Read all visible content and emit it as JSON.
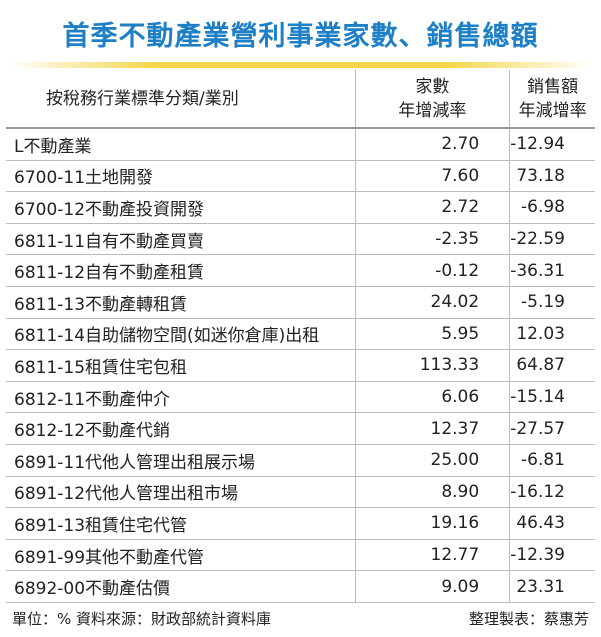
{
  "title": "首季不動產業營利事業家數、銷售總額",
  "table": {
    "header": [
      [
        "按稅務行業標準分類/業別"
      ],
      [
        "家數",
        "年增減率"
      ],
      [
        "銷售額",
        "年減增率"
      ]
    ],
    "rows": [
      [
        "L不動產業",
        "2.70",
        "-12.94"
      ],
      [
        "6700-11土地開發",
        "7.60",
        "73.18"
      ],
      [
        "6700-12不動產投資開發",
        "2.72",
        "-6.98"
      ],
      [
        "6811-11自有不動產買賣",
        "-2.35",
        "-22.59"
      ],
      [
        "6811-12自有不動產租賃",
        "-0.12",
        "-36.31"
      ],
      [
        "6811-13不動產轉租賃",
        "24.02",
        "-5.19"
      ],
      [
        "6811-14自助儲物空間(如迷你倉庫)出租",
        "5.95",
        "12.03"
      ],
      [
        "6811-15租賃住宅包租",
        "113.33",
        "64.87"
      ],
      [
        "6812-11不動產仲介",
        "6.06",
        "-15.14"
      ],
      [
        "6812-12不動產代銷",
        "12.37",
        "-27.57"
      ],
      [
        "6891-11代他人管理出租展示場",
        "25.00",
        "-6.81"
      ],
      [
        "6891-12代他人管理出租市場",
        "8.90",
        "-16.12"
      ],
      [
        "6891-13租賃住宅代管",
        "19.16",
        "46.43"
      ],
      [
        "6891-99其他不動產代管",
        "12.77",
        "-12.39"
      ],
      [
        "6892-00不動產估價",
        "9.09",
        "23.31"
      ]
    ]
  },
  "footer": {
    "source": "單位：% 資料來源：財政部統計資料庫",
    "credit": "整理製表：蔡惠芳"
  }
}
